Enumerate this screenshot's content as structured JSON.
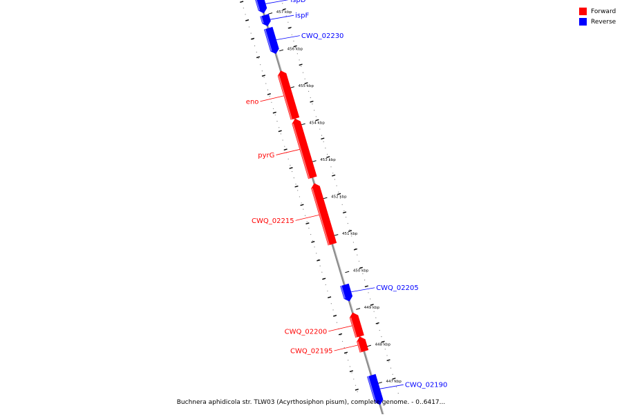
{
  "caption": "Buchnera aphidicola str. TLW03 (Acyrthosiphon pisum), complete genome. - 0..6417...",
  "legend": {
    "items": [
      {
        "label": "Forward",
        "color": "#ff0000"
      },
      {
        "label": "Reverse",
        "color": "#0000ff"
      }
    ]
  },
  "colors": {
    "forward": "#ff0000",
    "reverse": "#0000ff",
    "backbone": "#8c8c8c"
  },
  "axis": {
    "unit": "kbp"
  },
  "ticks": [
    {
      "kbp": 457,
      "label": "457 kbp"
    },
    {
      "kbp": 456,
      "label": "456 kbp"
    },
    {
      "kbp": 455,
      "label": "455 kbp"
    },
    {
      "kbp": 454,
      "label": "454 kbp"
    },
    {
      "kbp": 453,
      "label": "453 kbp"
    },
    {
      "kbp": 452,
      "label": "452 kbp"
    },
    {
      "kbp": 451,
      "label": "451 kbp"
    },
    {
      "kbp": 450,
      "label": "450 kbp"
    },
    {
      "kbp": 449,
      "label": "449 kbp"
    },
    {
      "kbp": 448,
      "label": "448 kbp"
    },
    {
      "kbp": 447,
      "label": "447 kbp"
    }
  ],
  "genes": [
    {
      "name": "ispD",
      "strand": "reverse",
      "start": 457.05,
      "end": 457.5
    },
    {
      "name": "ispF",
      "strand": "reverse",
      "start": 456.7,
      "end": 457.0
    },
    {
      "name": "CWQ_02230",
      "strand": "reverse",
      "start": 455.95,
      "end": 456.65
    },
    {
      "name": "eno",
      "strand": "forward",
      "start": 454.2,
      "end": 455.5
    },
    {
      "name": "pyrG",
      "strand": "forward",
      "start": 452.6,
      "end": 454.2
    },
    {
      "name": "CWQ_02215",
      "strand": "forward",
      "start": 450.8,
      "end": 452.45
    },
    {
      "name": "CWQ_02205",
      "strand": "reverse",
      "start": 449.25,
      "end": 449.7
    },
    {
      "name": "CWQ_02200",
      "strand": "forward",
      "start": 448.3,
      "end": 448.95
    },
    {
      "name": "CWQ_02195",
      "strand": "forward",
      "start": 447.9,
      "end": 448.3
    },
    {
      "name": "CWQ_02190",
      "strand": "reverse",
      "start": 446.45,
      "end": 447.25
    }
  ]
}
